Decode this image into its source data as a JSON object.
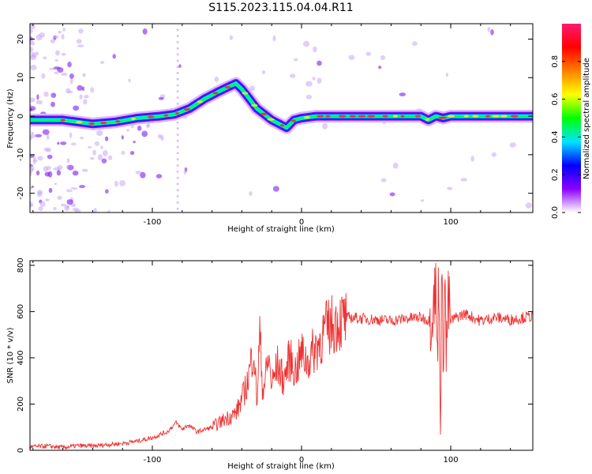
{
  "title": "S115.2023.115.04.04.R11",
  "chart_data": [
    {
      "type": "heatmap",
      "title": "S115.2023.115.04.04.R11",
      "xlabel": "Height of straight line (km)",
      "ylabel": "Frequency (Hz)",
      "xlim": [
        -182,
        155
      ],
      "ylim": [
        -25,
        24
      ],
      "xticks": [
        -100,
        0,
        100
      ],
      "yticks": [
        -20,
        -10,
        0,
        10,
        20
      ],
      "colorbar": {
        "label": "Normalized spectral amplitude",
        "range": [
          0,
          1
        ],
        "ticks": [
          0.0,
          0.2,
          0.4,
          0.6,
          0.8
        ],
        "tick_labels": [
          "0.0",
          "0.2",
          "0.4",
          "0.6",
          "0.8"
        ],
        "colors": [
          "#ffffff",
          "#8a00ff",
          "#0000ff",
          "#00e5ff",
          "#00ff00",
          "#ffff00",
          "#ff7f00",
          "#ff0000",
          "#ff1a6e"
        ]
      },
      "ridge": {
        "x": [
          -182,
          -160,
          -140,
          -125,
          -110,
          -95,
          -85,
          -75,
          -65,
          -55,
          -48,
          -44,
          -40,
          -35,
          -30,
          -25,
          -20,
          -15,
          -10,
          -5,
          0,
          10,
          50,
          80,
          85,
          90,
          95,
          100,
          155
        ],
        "y": [
          -1,
          -1,
          -2,
          -1.5,
          -0.5,
          0,
          0.5,
          2,
          4.5,
          6.5,
          7.8,
          8.5,
          7,
          4.5,
          2,
          0.5,
          -1,
          -2,
          -3,
          -1,
          -0.5,
          0,
          0,
          0,
          -1,
          0,
          -0.5,
          0,
          0
        ]
      }
    },
    {
      "type": "line",
      "xlabel": "Height of straight line (km)",
      "ylabel": "SNR (10 * v/v)",
      "xlim": [
        -182,
        155
      ],
      "ylim": [
        0,
        820
      ],
      "xticks": [
        -100,
        0,
        100
      ],
      "yticks": [
        0,
        200,
        400,
        600,
        800
      ],
      "color": "#ee3333",
      "series": [
        {
          "x": [
            -182,
            -170,
            -160,
            -150,
            -140,
            -130,
            -120,
            -110,
            -100,
            -90,
            -84,
            -80,
            -76,
            -70,
            -60,
            -50,
            -44,
            -40,
            -36,
            -32,
            -30,
            -28,
            -26,
            -24,
            -22,
            -20,
            -16,
            -12,
            -8,
            -4,
            0,
            4,
            8,
            12,
            16,
            20,
            24,
            28,
            32,
            40,
            50,
            60,
            70,
            80,
            86,
            90,
            91,
            92,
            93,
            94,
            95,
            96,
            97,
            98,
            100,
            105,
            110,
            120,
            130,
            140,
            155
          ],
          "values": [
            15,
            18,
            12,
            20,
            18,
            25,
            30,
            40,
            55,
            80,
            120,
            90,
            110,
            80,
            100,
            140,
            160,
            220,
            300,
            450,
            200,
            500,
            260,
            320,
            400,
            280,
            370,
            300,
            400,
            340,
            420,
            380,
            430,
            470,
            520,
            540,
            560,
            560,
            575,
            570,
            565,
            560,
            570,
            575,
            560,
            700,
            380,
            790,
            150,
            720,
            420,
            800,
            360,
            650,
            560,
            580,
            590,
            560,
            575,
            565,
            580
          ]
        }
      ]
    }
  ]
}
